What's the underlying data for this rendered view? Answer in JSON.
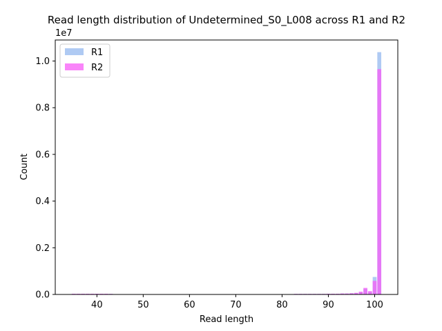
{
  "chart_data": {
    "type": "bar",
    "title": "Read length distribution of Undetermined_S0_L008 across R1 and R2",
    "xlabel": "Read length",
    "ylabel": "Count",
    "y_offset_label": "1e7",
    "xlim": [
      31,
      105
    ],
    "ylim": [
      0,
      1.09
    ],
    "y_unit_multiplier": 10000000,
    "x_ticks": [
      {
        "value": 40,
        "label": "40"
      },
      {
        "value": 50,
        "label": "50"
      },
      {
        "value": 60,
        "label": "60"
      },
      {
        "value": 70,
        "label": "70"
      },
      {
        "value": 80,
        "label": "80"
      },
      {
        "value": 90,
        "label": "90"
      },
      {
        "value": 100,
        "label": "100"
      }
    ],
    "y_ticks": [
      {
        "value": 0.0,
        "label": "0.0"
      },
      {
        "value": 0.2,
        "label": "0.2"
      },
      {
        "value": 0.4,
        "label": "0.4"
      },
      {
        "value": 0.6,
        "label": "0.6"
      },
      {
        "value": 0.8,
        "label": "0.8"
      },
      {
        "value": 1.0,
        "label": "1.0"
      }
    ],
    "legend_position": "top-left",
    "grid": false,
    "series": [
      {
        "name": "R1",
        "color": "#a6c4f2",
        "points": [
          {
            "x": 35,
            "y": 0.002
          },
          {
            "x": 36,
            "y": 0.002
          },
          {
            "x": 37,
            "y": 0.002
          },
          {
            "x": 38,
            "y": 0.002
          },
          {
            "x": 39,
            "y": 0.002
          },
          {
            "x": 40,
            "y": 0.002
          },
          {
            "x": 41,
            "y": 0.002
          },
          {
            "x": 42,
            "y": 0.002
          },
          {
            "x": 43,
            "y": 0.002
          },
          {
            "x": 83,
            "y": 0.002
          },
          {
            "x": 84,
            "y": 0.002
          },
          {
            "x": 85,
            "y": 0.002
          },
          {
            "x": 86,
            "y": 0.002
          },
          {
            "x": 87,
            "y": 0.002
          },
          {
            "x": 88,
            "y": 0.002
          },
          {
            "x": 89,
            "y": 0.002
          },
          {
            "x": 90,
            "y": 0.003
          },
          {
            "x": 91,
            "y": 0.003
          },
          {
            "x": 92,
            "y": 0.003
          },
          {
            "x": 93,
            "y": 0.004
          },
          {
            "x": 94,
            "y": 0.004
          },
          {
            "x": 95,
            "y": 0.005
          },
          {
            "x": 96,
            "y": 0.006
          },
          {
            "x": 97,
            "y": 0.01
          },
          {
            "x": 98,
            "y": 0.025
          },
          {
            "x": 99,
            "y": 0.012
          },
          {
            "x": 100,
            "y": 0.075
          },
          {
            "x": 101,
            "y": 1.038
          }
        ]
      },
      {
        "name": "R2",
        "color": "#f75cf7",
        "points": [
          {
            "x": 35,
            "y": 0.003
          },
          {
            "x": 36,
            "y": 0.003
          },
          {
            "x": 37,
            "y": 0.003
          },
          {
            "x": 38,
            "y": 0.003
          },
          {
            "x": 39,
            "y": 0.003
          },
          {
            "x": 40,
            "y": 0.003
          },
          {
            "x": 41,
            "y": 0.003
          },
          {
            "x": 42,
            "y": 0.003
          },
          {
            "x": 43,
            "y": 0.002
          },
          {
            "x": 83,
            "y": 0.001
          },
          {
            "x": 84,
            "y": 0.001
          },
          {
            "x": 85,
            "y": 0.001
          },
          {
            "x": 86,
            "y": 0.001
          },
          {
            "x": 87,
            "y": 0.001
          },
          {
            "x": 88,
            "y": 0.001
          },
          {
            "x": 89,
            "y": 0.002
          },
          {
            "x": 90,
            "y": 0.003
          },
          {
            "x": 91,
            "y": 0.003
          },
          {
            "x": 92,
            "y": 0.003
          },
          {
            "x": 93,
            "y": 0.004
          },
          {
            "x": 94,
            "y": 0.004
          },
          {
            "x": 95,
            "y": 0.005
          },
          {
            "x": 96,
            "y": 0.007
          },
          {
            "x": 97,
            "y": 0.012
          },
          {
            "x": 98,
            "y": 0.028
          },
          {
            "x": 99,
            "y": 0.014
          },
          {
            "x": 100,
            "y": 0.058
          },
          {
            "x": 101,
            "y": 0.965
          }
        ]
      }
    ]
  }
}
